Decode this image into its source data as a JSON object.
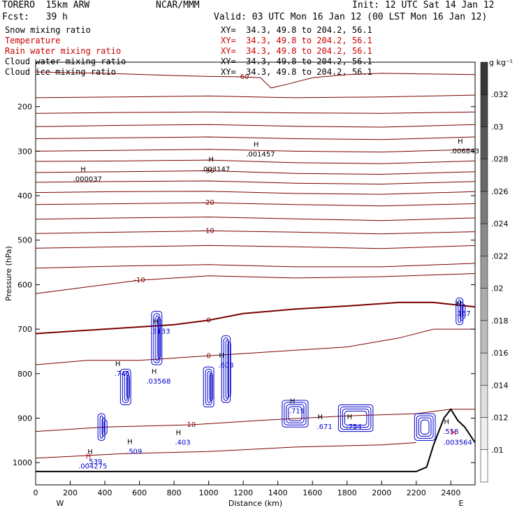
{
  "header": {
    "model": "TORERO  15km ARW",
    "center": "NCAR/MMM",
    "init": "Init: 12 UTC Sat 14 Jan 12",
    "fcst": "Fcst:   39 h",
    "valid": "Valid: 03 UTC Mon 16 Jan 12 (00 LST Mon 16 Jan 12)"
  },
  "fields": [
    {
      "name": "Snow mixing ratio",
      "xy": "XY=  34.3, 49.8 to 204.2, 56.1",
      "color": "#000000"
    },
    {
      "name": "Temperature",
      "xy": "XY=  34.3, 49.8 to 204.2, 56.1",
      "color": "#cc0000"
    },
    {
      "name": "Rain water mixing ratio",
      "xy": "XY=  34.3, 49.8 to 204.2, 56.1",
      "color": "#cc0000"
    },
    {
      "name": "Cloud water mixing ratio",
      "xy": "XY=  34.3, 49.8 to 204.2, 56.1",
      "color": "#000000"
    },
    {
      "name": "Cloud ice mixing ratio",
      "xy": "XY=  34.3, 49.8 to 204.2, 56.1",
      "color": "#000000"
    }
  ],
  "chart_data": {
    "type": "cross-section",
    "xlabel": "Distance (km)",
    "ylabel": "Pressure (hPa)",
    "xlim": [
      0,
      2540
    ],
    "ylim": [
      1050,
      100
    ],
    "x_ticks": [
      0,
      200,
      400,
      600,
      800,
      1000,
      1200,
      1400,
      1600,
      1800,
      2000,
      2200,
      2400
    ],
    "y_ticks": [
      200,
      300,
      400,
      500,
      600,
      700,
      800,
      900,
      1000
    ],
    "x_end_labels": {
      "left": "W",
      "right": "E"
    },
    "colorbar": {
      "unit": "g kg⁻¹",
      "labels": [
        ".01",
        ".012",
        ".014",
        ".016",
        ".018",
        ".02",
        ".022",
        ".024",
        ".026",
        ".028",
        ".03",
        ".032"
      ]
    },
    "temperature_contours": [
      {
        "label": "-60",
        "points": [
          [
            0,
            122
          ],
          [
            400,
            125
          ],
          [
            800,
            130
          ],
          [
            1000,
            132
          ],
          [
            1200,
            133
          ],
          [
            1300,
            135
          ],
          [
            1360,
            158
          ],
          [
            1450,
            150
          ],
          [
            1600,
            135
          ],
          [
            1800,
            128
          ],
          [
            2000,
            125
          ],
          [
            2200,
            126
          ],
          [
            2540,
            128
          ]
        ]
      },
      {
        "label": "",
        "points": [
          [
            0,
            180
          ],
          [
            500,
            178
          ],
          [
            1000,
            176
          ],
          [
            1500,
            180
          ],
          [
            2000,
            178
          ],
          [
            2540,
            174
          ]
        ]
      },
      {
        "label": "",
        "points": [
          [
            0,
            215
          ],
          [
            500,
            213
          ],
          [
            1000,
            212
          ],
          [
            1500,
            214
          ],
          [
            2000,
            215
          ],
          [
            2540,
            212
          ]
        ]
      },
      {
        "label": "",
        "points": [
          [
            0,
            245
          ],
          [
            500,
            242
          ],
          [
            1000,
            240
          ],
          [
            1500,
            244
          ],
          [
            2000,
            246
          ],
          [
            2540,
            240
          ]
        ]
      },
      {
        "label": "",
        "points": [
          [
            0,
            272
          ],
          [
            500,
            270
          ],
          [
            1000,
            268
          ],
          [
            1500,
            272
          ],
          [
            2000,
            274
          ],
          [
            2540,
            268
          ]
        ]
      },
      {
        "label": "",
        "points": [
          [
            0,
            300
          ],
          [
            500,
            298
          ],
          [
            1000,
            296
          ],
          [
            1500,
            300
          ],
          [
            2000,
            302
          ],
          [
            2540,
            296
          ]
        ]
      },
      {
        "label": "",
        "points": [
          [
            0,
            323
          ],
          [
            500,
            322
          ],
          [
            1000,
            320
          ],
          [
            1500,
            326
          ],
          [
            2000,
            328
          ],
          [
            2540,
            322
          ]
        ]
      },
      {
        "label": "-30",
        "points": [
          [
            0,
            348
          ],
          [
            500,
            346
          ],
          [
            1000,
            344
          ],
          [
            1500,
            350
          ],
          [
            2000,
            352
          ],
          [
            2540,
            346
          ]
        ]
      },
      {
        "label": "",
        "points": [
          [
            0,
            370
          ],
          [
            500,
            368
          ],
          [
            1000,
            367
          ],
          [
            1500,
            372
          ],
          [
            2000,
            374
          ],
          [
            2540,
            368
          ]
        ]
      },
      {
        "label": "",
        "points": [
          [
            0,
            393
          ],
          [
            500,
            391
          ],
          [
            1000,
            390
          ],
          [
            1500,
            395
          ],
          [
            2000,
            397
          ],
          [
            2540,
            391
          ]
        ]
      },
      {
        "label": "-20",
        "points": [
          [
            0,
            420
          ],
          [
            500,
            418
          ],
          [
            1000,
            416
          ],
          [
            1500,
            420
          ],
          [
            2000,
            423
          ],
          [
            2540,
            418
          ]
        ]
      },
      {
        "label": "",
        "points": [
          [
            0,
            453
          ],
          [
            500,
            450
          ],
          [
            1000,
            448
          ],
          [
            1500,
            452
          ],
          [
            2000,
            456
          ],
          [
            2540,
            450
          ]
        ]
      },
      {
        "label": "-10",
        "points": [
          [
            0,
            485
          ],
          [
            500,
            482
          ],
          [
            1000,
            479
          ],
          [
            1500,
            482
          ],
          [
            2000,
            486
          ],
          [
            2540,
            481
          ]
        ]
      },
      {
        "label": "",
        "points": [
          [
            0,
            518
          ],
          [
            500,
            515
          ],
          [
            1000,
            512
          ],
          [
            1500,
            515
          ],
          [
            2000,
            519
          ],
          [
            2540,
            512
          ]
        ]
      },
      {
        "label": "",
        "points": [
          [
            0,
            563
          ],
          [
            500,
            558
          ],
          [
            1000,
            555
          ],
          [
            1500,
            560
          ],
          [
            2000,
            560
          ],
          [
            2540,
            552
          ]
        ]
      },
      {
        "label": "-10",
        "points": [
          [
            0,
            620
          ],
          [
            300,
            605
          ],
          [
            600,
            590
          ],
          [
            1000,
            580
          ],
          [
            1500,
            585
          ],
          [
            2000,
            582
          ],
          [
            2540,
            575
          ]
        ]
      },
      {
        "label": "0",
        "points": [
          [
            0,
            710
          ],
          [
            400,
            700
          ],
          [
            800,
            690
          ],
          [
            1000,
            680
          ],
          [
            1200,
            665
          ],
          [
            1500,
            655
          ],
          [
            1800,
            648
          ],
          [
            2100,
            640
          ],
          [
            2300,
            640
          ],
          [
            2540,
            650
          ]
        ],
        "bold": true
      },
      {
        "label": "0",
        "points": [
          [
            0,
            780
          ],
          [
            300,
            770
          ],
          [
            600,
            770
          ],
          [
            1000,
            760
          ],
          [
            1400,
            750
          ],
          [
            1800,
            740
          ],
          [
            2100,
            720
          ],
          [
            2300,
            700
          ],
          [
            2540,
            700
          ]
        ]
      },
      {
        "label": "10",
        "points": [
          [
            0,
            930
          ],
          [
            400,
            920
          ],
          [
            900,
            915
          ],
          [
            1300,
            905
          ],
          [
            1800,
            895
          ],
          [
            2200,
            890
          ],
          [
            2400,
            880
          ],
          [
            2540,
            880
          ]
        ]
      },
      {
        "label": "",
        "points": [
          [
            0,
            990
          ],
          [
            500,
            980
          ],
          [
            1000,
            975
          ],
          [
            1500,
            965
          ],
          [
            2000,
            960
          ],
          [
            2200,
            955
          ]
        ]
      }
    ],
    "max_labels": [
      {
        "text": ".000037",
        "x": 300,
        "p": 368
      },
      {
        "text": ".003147",
        "x": 1040,
        "p": 346
      },
      {
        "text": ".001457",
        "x": 1300,
        "p": 312
      },
      {
        "text": ".006843",
        "x": 2480,
        "p": 305
      },
      {
        "text": ".3133",
        "x": 720,
        "p": 710
      },
      {
        "text": ".745",
        "x": 500,
        "p": 805
      },
      {
        "text": ".608",
        "x": 1100,
        "p": 786
      },
      {
        "text": ".719",
        "x": 1510,
        "p": 889
      },
      {
        "text": ".671",
        "x": 1670,
        "p": 924
      },
      {
        "text": ".754",
        "x": 1840,
        "p": 924
      },
      {
        "text": ".157",
        "x": 2470,
        "p": 670
      },
      {
        "text": ".558",
        "x": 2400,
        "p": 935
      },
      {
        "text": ".539",
        "x": 340,
        "p": 1003
      },
      {
        "text": ".509",
        "x": 570,
        "p": 980
      },
      {
        "text": ".403",
        "x": 850,
        "p": 960
      },
      {
        "text": ".003564",
        "x": 2440,
        "p": 960
      },
      {
        "text": ".004275",
        "x": 330,
        "p": 1013
      },
      {
        "text": ".03568",
        "x": 710,
        "p": 822
      }
    ]
  }
}
